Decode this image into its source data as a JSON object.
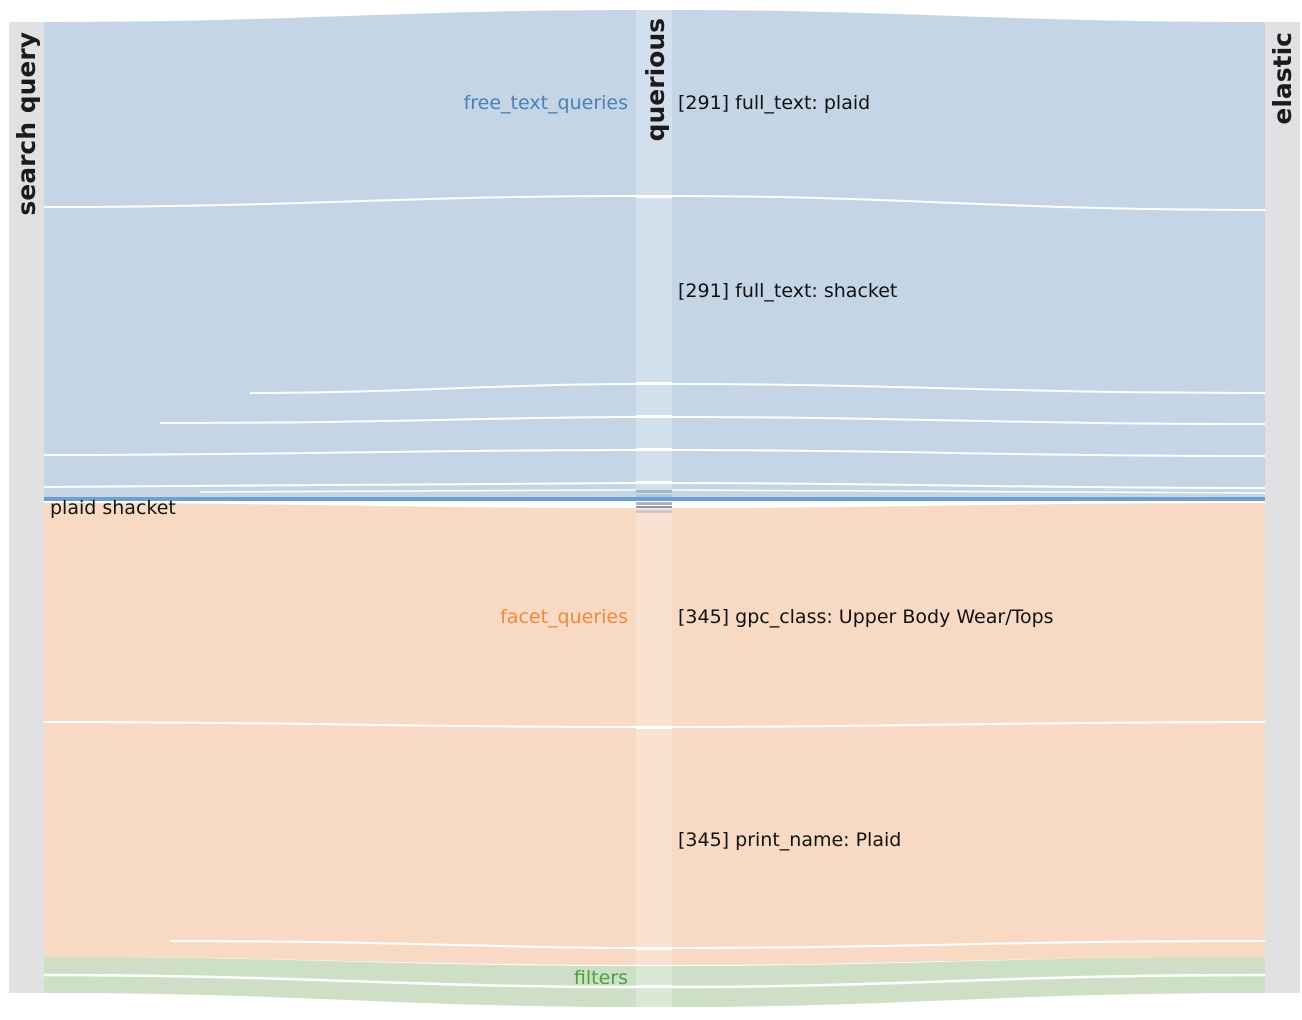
{
  "nodes": {
    "left": "search query",
    "middle": "querious",
    "right": "elastic"
  },
  "query": "plaid shacket",
  "groups": [
    {
      "key": "free_text",
      "label": "free_text_queries",
      "color": "#4a7fb8",
      "fill": "#c4d5e5",
      "bar": "#d2dfec"
    },
    {
      "key": "facet",
      "label": "facet_queries",
      "color": "#ee8a3c",
      "fill": "#f8dac4",
      "bar": "#fae2d3"
    },
    {
      "key": "filters",
      "label": "filters",
      "color": "#4aa042",
      "fill": "#cde0c5",
      "bar": "#d9e8d3"
    }
  ],
  "terms": [
    {
      "label": "[291] full_text: plaid",
      "group": "free_text"
    },
    {
      "label": "[291] full_text: shacket",
      "group": "free_text"
    },
    {
      "label": "[345] gpc_class: Upper Body Wear/Tops",
      "group": "facet"
    },
    {
      "label": "[345] print_name: Plaid",
      "group": "facet"
    }
  ],
  "colors": {
    "node_bar": "#e1e1e3",
    "separator": "#6d9fd0"
  }
}
